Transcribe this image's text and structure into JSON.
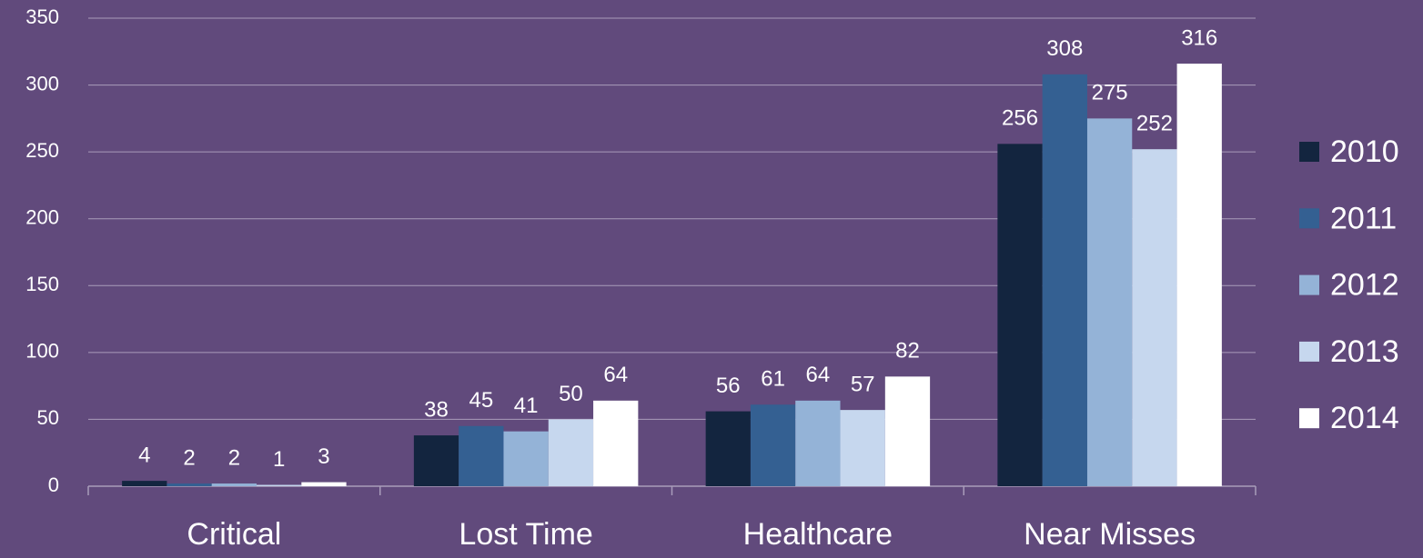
{
  "chart_data": {
    "type": "bar",
    "categories": [
      "Critical",
      "Lost Time",
      "Healthcare",
      "Near Misses"
    ],
    "series": [
      {
        "name": "2010",
        "color": "#13253f",
        "values": [
          4,
          38,
          56,
          256
        ]
      },
      {
        "name": "2011",
        "color": "#346092",
        "values": [
          2,
          45,
          61,
          308
        ]
      },
      {
        "name": "2012",
        "color": "#94b3d7",
        "values": [
          2,
          41,
          64,
          275
        ]
      },
      {
        "name": "2013",
        "color": "#c6d7ee",
        "values": [
          1,
          50,
          57,
          252
        ]
      },
      {
        "name": "2014",
        "color": "#ffffff",
        "values": [
          3,
          64,
          82,
          316
        ]
      }
    ],
    "ylim": [
      0,
      350
    ],
    "yticks": [
      0,
      50,
      100,
      150,
      200,
      250,
      300,
      350
    ],
    "grid": true,
    "legend": "right"
  }
}
